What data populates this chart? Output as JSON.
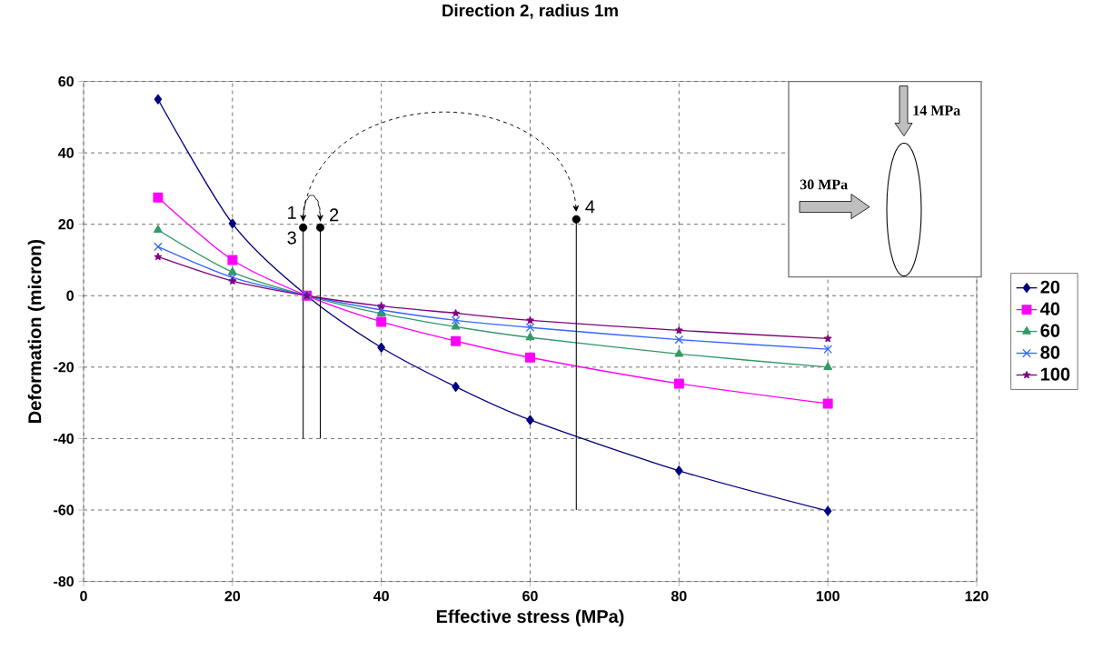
{
  "chart_data": {
    "type": "line",
    "title": "Direction 2, radius 1m",
    "xlabel": "Effective stress (MPa)",
    "ylabel": "Deformation (micron)",
    "x": [
      10,
      20,
      30,
      40,
      50,
      60,
      80,
      100
    ],
    "series": [
      {
        "name": "20",
        "color": "#000080",
        "marker": "diamond",
        "values": [
          55,
          20.2,
          0,
          -14.5,
          -25.5,
          -34.8,
          -49,
          -60.3
        ]
      },
      {
        "name": "40",
        "color": "#ff00ff",
        "marker": "square",
        "values": [
          27.5,
          10,
          0,
          -7.3,
          -12.7,
          -17.3,
          -24.6,
          -30.2
        ]
      },
      {
        "name": "60",
        "color": "#339966",
        "marker": "triangle",
        "values": [
          18.4,
          6.6,
          0,
          -5,
          -8.7,
          -11.7,
          -16.3,
          -20
        ]
      },
      {
        "name": "80",
        "color": "#3366ff",
        "marker": "cross",
        "values": [
          13.7,
          5.1,
          0,
          -4,
          -6.9,
          -8.9,
          -12.3,
          -15
        ]
      },
      {
        "name": "100",
        "color": "#800080",
        "marker": "star",
        "values": [
          10.9,
          4.1,
          0,
          -2.9,
          -4.9,
          -6.9,
          -9.7,
          -12
        ]
      },
      {
        "type": "scatter",
        "color": "#000000",
        "marker": "circle",
        "x": [
          29.5,
          31.8,
          66.2
        ],
        "values": [
          19.1,
          19.1,
          21.4
        ]
      },
      {
        "type": "line",
        "color": "#000000",
        "marker": "none",
        "x": [
          29.5,
          29.5
        ],
        "values": [
          19.1,
          -40
        ]
      },
      {
        "type": "line",
        "color": "#000000",
        "marker": "none",
        "x": [
          31.8,
          31.8
        ],
        "values": [
          19.1,
          -40
        ]
      },
      {
        "type": "line",
        "color": "#000000",
        "marker": "none",
        "x": [
          66.2,
          66.2
        ],
        "values": [
          21.4,
          -60
        ]
      }
    ],
    "annotations": [
      {
        "text": "1",
        "x": 29.5,
        "y": 19.1
      },
      {
        "text": "2",
        "x": 31.8,
        "y": 19.1
      },
      {
        "text": "3",
        "x": 29.5,
        "y": 19.1
      },
      {
        "text": "4",
        "x": 66.2,
        "y": 21.4
      },
      "30 MPa",
      "14 MPa"
    ],
    "xlim": [
      0,
      120
    ],
    "ylim": [
      -80,
      60
    ],
    "xticks": [
      0,
      20,
      40,
      60,
      80,
      100,
      120
    ],
    "yticks": [
      -80,
      -60,
      -40,
      -20,
      0,
      20,
      40,
      60
    ],
    "grid": true,
    "legend": "right",
    "line_style": "solid"
  }
}
